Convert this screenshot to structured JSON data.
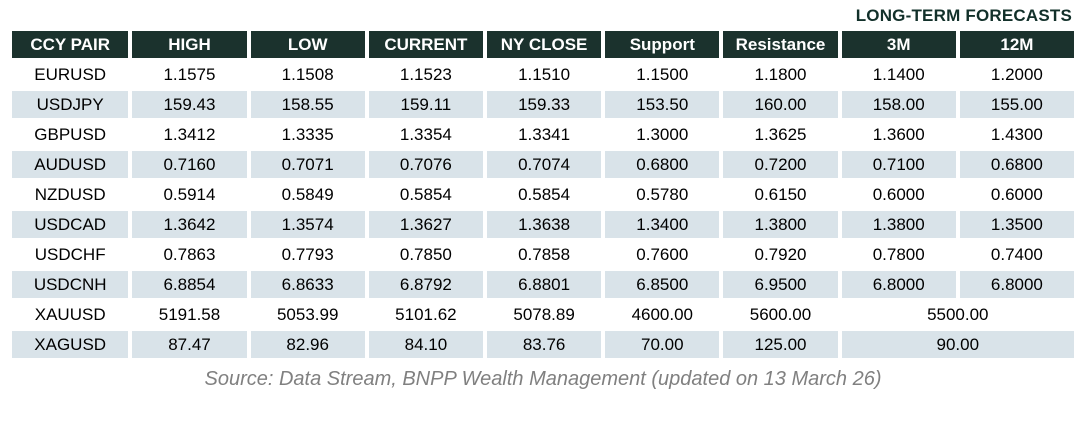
{
  "title": "LONG-TERM FORECASTS",
  "colors": {
    "header_bg": "#1b322d",
    "header_text": "#ffffff",
    "row_stripe": "#d9e3e9",
    "title_text": "#12302a",
    "source_text": "#808080"
  },
  "table": {
    "headers": [
      "CCY PAIR",
      "HIGH",
      "LOW",
      "CURRENT",
      "NY CLOSE",
      "Support",
      "Resistance",
      "3M",
      "12M"
    ],
    "rows": [
      {
        "pair": "EURUSD",
        "high": "1.1575",
        "low": "1.1508",
        "current": "1.1523",
        "ny_close": "1.1510",
        "support": "1.1500",
        "resistance": "1.1800",
        "m3": "1.1400",
        "m12": "1.2000"
      },
      {
        "pair": "USDJPY",
        "high": "159.43",
        "low": "158.55",
        "current": "159.11",
        "ny_close": "159.33",
        "support": "153.50",
        "resistance": "160.00",
        "m3": "158.00",
        "m12": "155.00"
      },
      {
        "pair": "GBPUSD",
        "high": "1.3412",
        "low": "1.3335",
        "current": "1.3354",
        "ny_close": "1.3341",
        "support": "1.3000",
        "resistance": "1.3625",
        "m3": "1.3600",
        "m12": "1.4300"
      },
      {
        "pair": "AUDUSD",
        "high": "0.7160",
        "low": "0.7071",
        "current": "0.7076",
        "ny_close": "0.7074",
        "support": "0.6800",
        "resistance": "0.7200",
        "m3": "0.7100",
        "m12": "0.6800"
      },
      {
        "pair": "NZDUSD",
        "high": "0.5914",
        "low": "0.5849",
        "current": "0.5854",
        "ny_close": "0.5854",
        "support": "0.5780",
        "resistance": "0.6150",
        "m3": "0.6000",
        "m12": "0.6000"
      },
      {
        "pair": "USDCAD",
        "high": "1.3642",
        "low": "1.3574",
        "current": "1.3627",
        "ny_close": "1.3638",
        "support": "1.3400",
        "resistance": "1.3800",
        "m3": "1.3800",
        "m12": "1.3500"
      },
      {
        "pair": "USDCHF",
        "high": "0.7863",
        "low": "0.7793",
        "current": "0.7850",
        "ny_close": "0.7858",
        "support": "0.7600",
        "resistance": "0.7920",
        "m3": "0.7800",
        "m12": "0.7400"
      },
      {
        "pair": "USDCNH",
        "high": "6.8854",
        "low": "6.8633",
        "current": "6.8792",
        "ny_close": "6.8801",
        "support": "6.8500",
        "resistance": "6.9500",
        "m3": "6.8000",
        "m12": "6.8000"
      },
      {
        "pair": "XAUUSD",
        "high": "5191.58",
        "low": "5053.99",
        "current": "5101.62",
        "ny_close": "5078.89",
        "support": "4600.00",
        "resistance": "5600.00",
        "forecast": "5500.00"
      },
      {
        "pair": "XAGUSD",
        "high": "87.47",
        "low": "82.96",
        "current": "84.10",
        "ny_close": "83.76",
        "support": "70.00",
        "resistance": "125.00",
        "forecast": "90.00"
      }
    ]
  },
  "footer": "Source: Data Stream, BNPP Wealth Management (updated on 13 March 26)"
}
